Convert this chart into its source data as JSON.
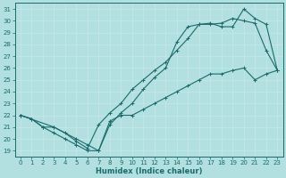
{
  "xlabel": "Humidex (Indice chaleur)",
  "bg_color": "#b2e0e0",
  "grid_color": "#d0eeee",
  "line_color": "#1a6b6b",
  "xlim": [
    -0.5,
    23.5
  ],
  "ylim": [
    18.5,
    31.5
  ],
  "xticks": [
    0,
    1,
    2,
    3,
    4,
    5,
    6,
    7,
    8,
    9,
    10,
    11,
    12,
    13,
    14,
    15,
    16,
    17,
    18,
    19,
    20,
    21,
    22,
    23
  ],
  "yticks": [
    19,
    20,
    21,
    22,
    23,
    24,
    25,
    26,
    27,
    28,
    29,
    30,
    31
  ],
  "line1_x": [
    0,
    1,
    2,
    3,
    4,
    5,
    6,
    7,
    8,
    9,
    10,
    11,
    12,
    13,
    14,
    15,
    16,
    17,
    18,
    19,
    20,
    21,
    22,
    23
  ],
  "line1_y": [
    22,
    21.7,
    21,
    20.5,
    20,
    19.5,
    19,
    19,
    21.5,
    22,
    22,
    22.5,
    23,
    23.5,
    24,
    24.5,
    25,
    25.5,
    25.5,
    25.8,
    26,
    25,
    25.5,
    25.8
  ],
  "line2_x": [
    0,
    1,
    2,
    3,
    4,
    5,
    6,
    7,
    8,
    9,
    10,
    11,
    12,
    13,
    14,
    15,
    16,
    17,
    18,
    19,
    20,
    21,
    22,
    23
  ],
  "line2_y": [
    22,
    21.7,
    21,
    21,
    20.5,
    19.8,
    19.2,
    21.2,
    22.2,
    23,
    24.2,
    25,
    25.8,
    26.5,
    27.5,
    28.5,
    29.7,
    29.7,
    29.8,
    30.2,
    30,
    29.8,
    27.5,
    25.8
  ],
  "line3_x": [
    0,
    3,
    5,
    6,
    7,
    8,
    9,
    10,
    11,
    12,
    13,
    14,
    15,
    16,
    17,
    18,
    19,
    20,
    21,
    22,
    23
  ],
  "line3_y": [
    22,
    21,
    20,
    19.5,
    19,
    21.2,
    22.2,
    23,
    24.2,
    25.2,
    26,
    28.2,
    29.5,
    29.7,
    29.8,
    29.5,
    29.5,
    31,
    30.2,
    29.7,
    25.8
  ]
}
